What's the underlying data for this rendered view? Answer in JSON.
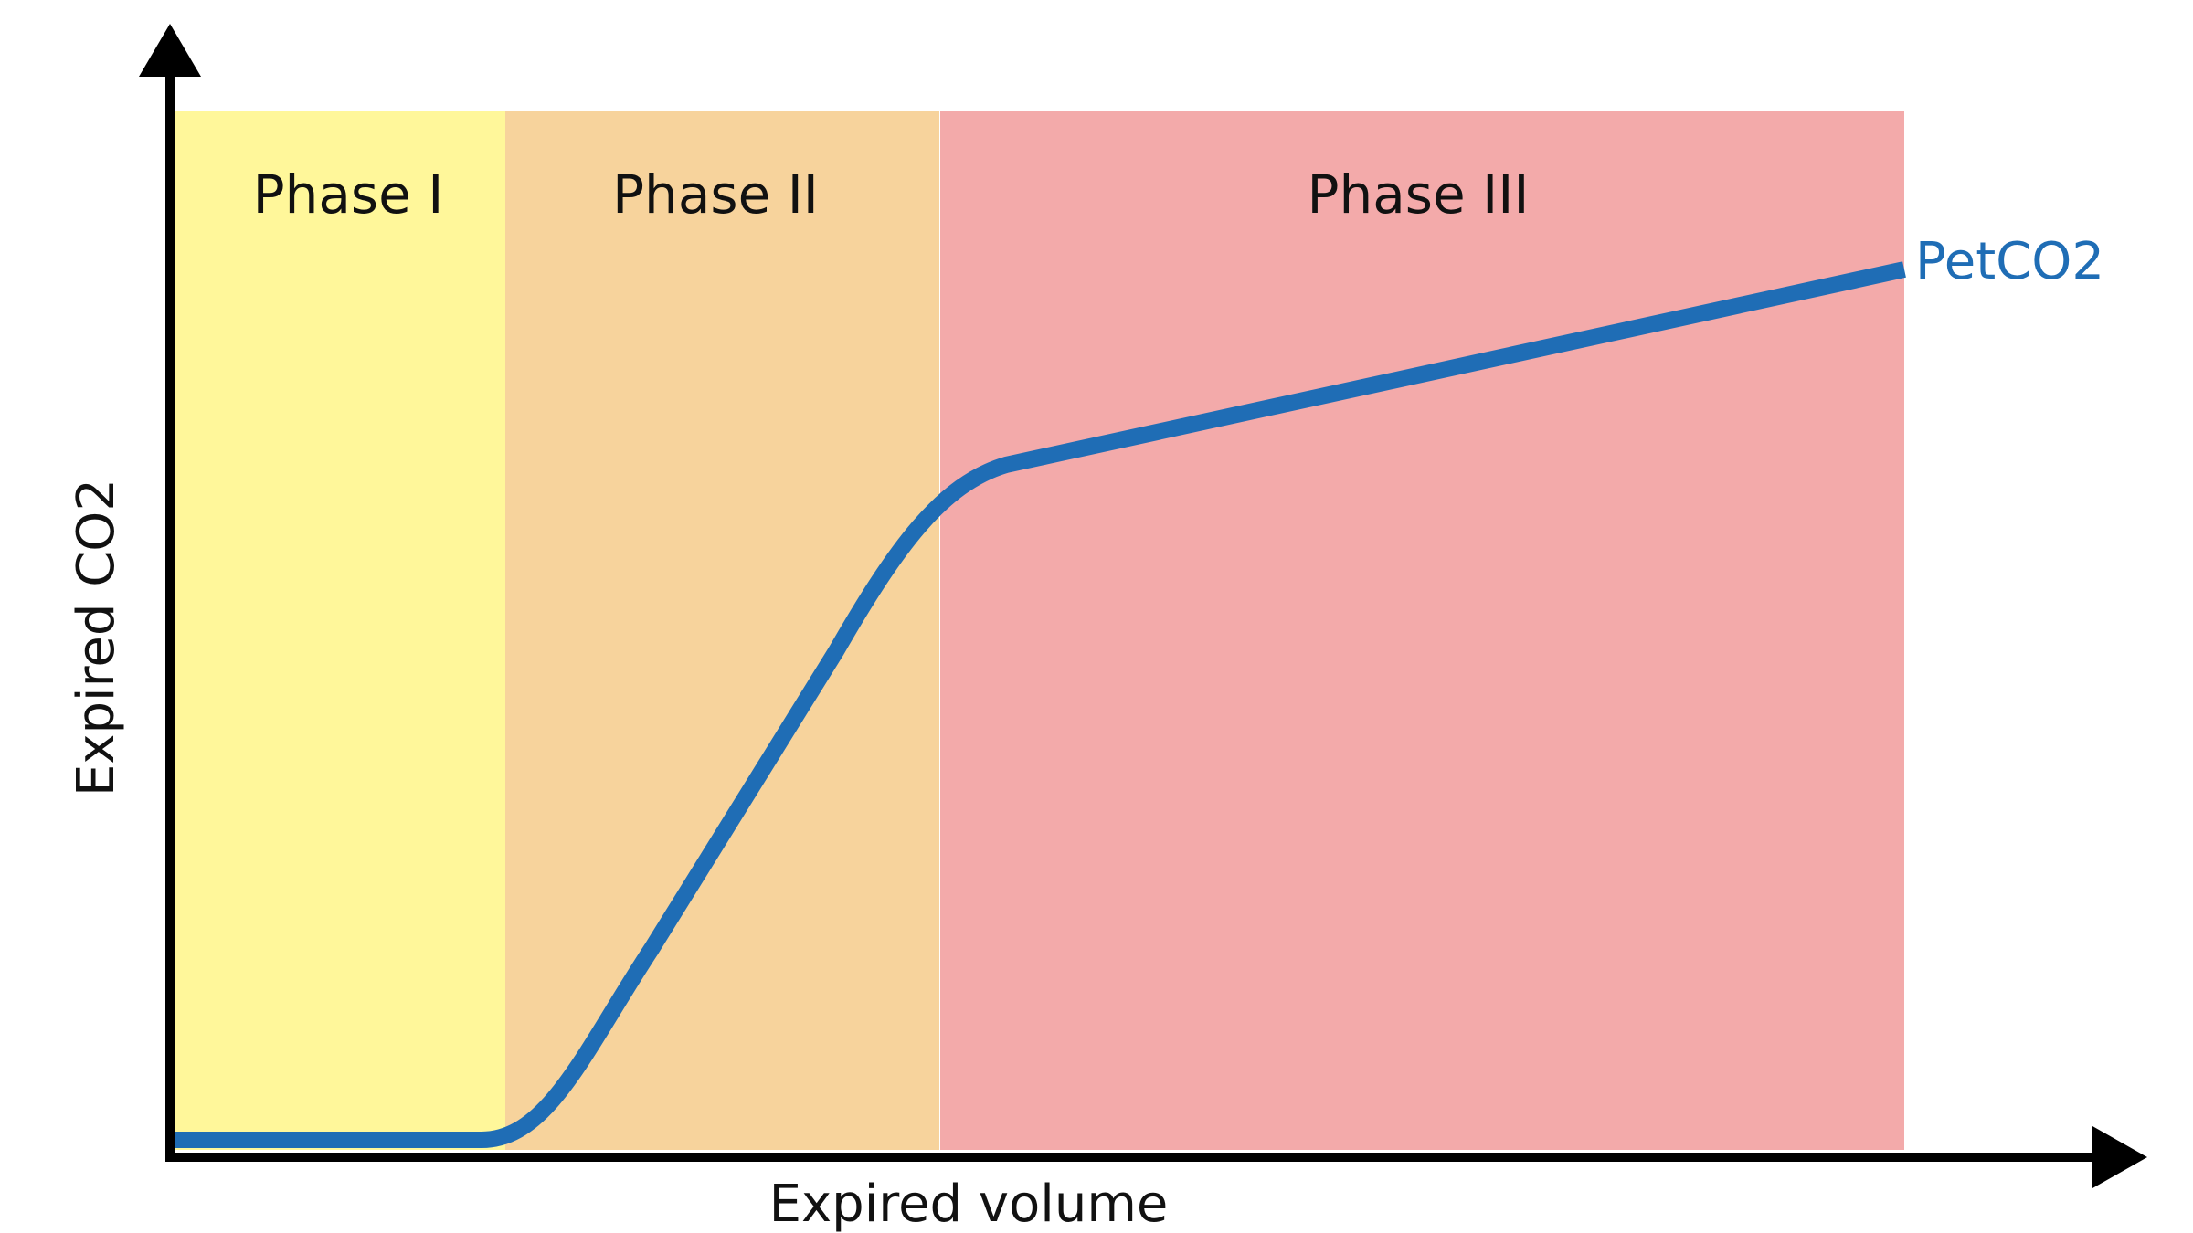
{
  "phases": [
    {
      "label": "Phase I"
    },
    {
      "label": "Phase II"
    },
    {
      "label": "Phase III"
    }
  ],
  "curve": {
    "label": "PetCO2"
  },
  "axes": {
    "x_label": "Expired volume",
    "y_label": "Expired CO2"
  }
}
